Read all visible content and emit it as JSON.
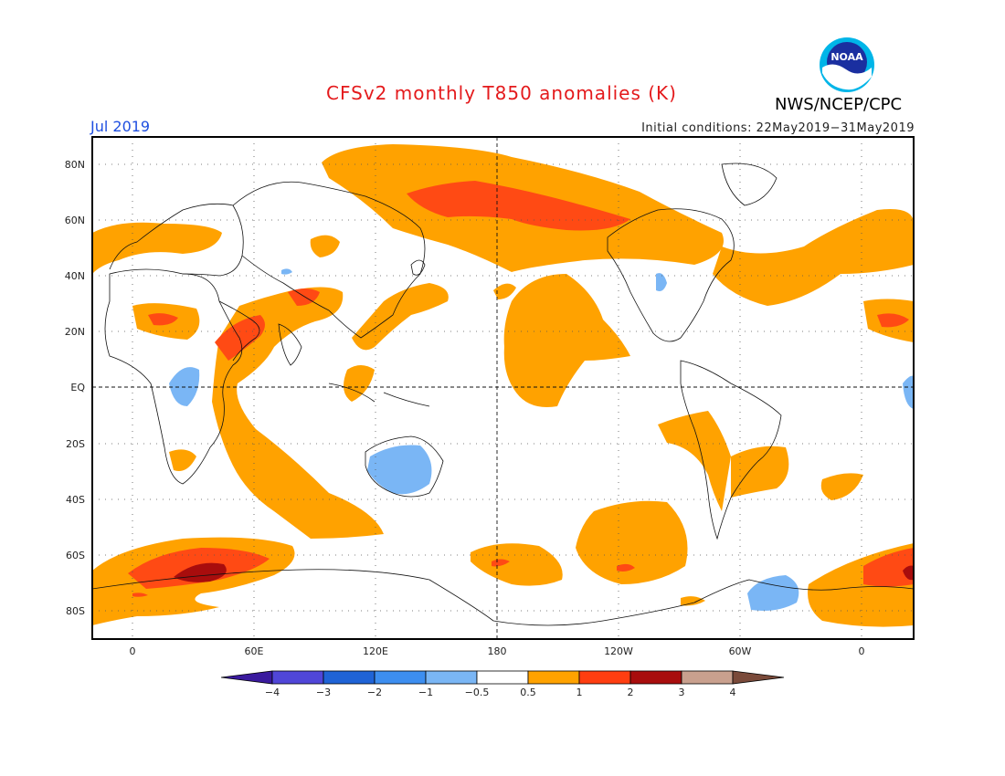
{
  "header": {
    "title": "CFSv2 monthly T850 anomalies (K)",
    "month": "Jul 2019",
    "initial_conditions": "Initial conditions: 22May2019−31May2019",
    "agency": "NWS/NCEP/CPC",
    "logo_text": "NOAA"
  },
  "axes": {
    "lat_labels": [
      "80N",
      "60N",
      "40N",
      "20N",
      "EQ",
      "20S",
      "40S",
      "60S",
      "80S"
    ],
    "lon_labels": [
      "0",
      "60E",
      "120E",
      "180",
      "120W",
      "60W",
      "0"
    ]
  },
  "colorbar": {
    "labels": [
      "−4",
      "−3",
      "−2",
      "−1",
      "−0.5",
      "0.5",
      "1",
      "2",
      "3",
      "4"
    ],
    "colors": [
      "#3a1a9e",
      "#5046d8",
      "#1f63d6",
      "#3d8ef0",
      "#7ab6f5",
      "#ffffff",
      "#ffa200",
      "#ff3e10",
      "#a80d0d",
      "#c9a08e",
      "#7a4a3a"
    ]
  },
  "fill_colors": {
    "weak_warm": "#ffa200",
    "moderate_warm": "#ff4a14",
    "strong_warm": "#a80d0d",
    "weak_cold": "#7ab6f5"
  }
}
